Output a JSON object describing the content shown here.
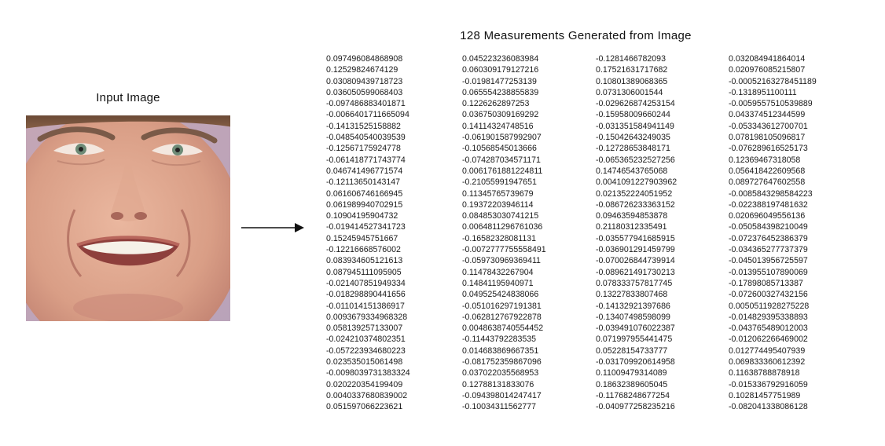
{
  "input_label": "Input Image",
  "title": "128 Measurements Generated from Image",
  "columns": [
    [
      "0.097496084868908",
      "0.12529824674129",
      "0.030809439718723",
      "0.036050599068403",
      "-0.097486883401871",
      "-0.0066401711665094",
      "-0.14131525158882",
      "-0.048540540039539",
      "-0.12567175924778",
      "-0.061418771743774",
      "0.046741496771574",
      "-0.12113650143147",
      "0.061606746166945",
      "0.061989940702915",
      "0.10904195904732",
      "-0.019414527341723",
      "0.15245945751667",
      "-0.12216668576002",
      "0.083934605121613",
      "0.087945111095905",
      "-0.021407851949334",
      "-0.018298890441656",
      "-0.011014151386917",
      "0.0093679334968328",
      "0.058139257133007",
      "-0.024210374802351",
      "-0.057223934680223",
      "0.023535015061498",
      "-0.0098039731383324",
      "0.020220354199409",
      "0.0040337680839002",
      "0.051597066223621"
    ],
    [
      "0.045223236083984",
      "0.060309179127216",
      "-0.01981477253139",
      "0.065554238855839",
      "0.1226262897253",
      "0.036750309169292",
      "0.14114324748516",
      "-0.061901587992907",
      "-0.10568545013666",
      "-0.074287034571171",
      "0.0061761881224811",
      "-0.21055991947651",
      "0.11345765739679",
      "0.19372203946114",
      "0.084853030741215",
      "0.0064811296761036",
      "-0.16582328081131",
      "-0.0072777755558491",
      "-0.059730969369411",
      "0.11478432267904",
      "0.14841195940971",
      "0.049525424838066",
      "-0.051016297191381",
      "-0.062812767922878",
      "0.0048638740554452",
      "-0.11443792283535",
      "0.014683869667351",
      "-0.081752359867096",
      "0.037022035568953",
      "0.12788131833076",
      "-0.094398014247417",
      "-0.10034311562777"
    ],
    [
      "-0.1281466782093",
      "0.17521631717682",
      "0.10801389068365",
      "0.0731306001544",
      "-0.029626874253154",
      "-0.15958009660244",
      "-0.031351584941149",
      "-0.15042643249035",
      "-0.12728653848171",
      "-0.065365232527256",
      "0.14746543765068",
      "0.0041091227903962",
      "0.021352224051952",
      "-0.086726233363152",
      "0.09463594853878",
      "0.21180312335491",
      "-0.035577941685915",
      "-0.036901291459799",
      "-0.070026844739914",
      "-0.089621491730213",
      "0.078333757817745",
      "0.13227833807468",
      "-0.14132921397686",
      "-0.13407498598099",
      "-0.039491076022387",
      "0.071997955441475",
      "0.05228154733777",
      "-0.031709920614958",
      "0.11009479314089",
      "0.18632389605045",
      "-0.11768248677254",
      "-0.040977258235216"
    ],
    [
      "0.032084941864014",
      "0.020976085215807",
      "-0.00052163278451189",
      "-0.1318951100111",
      "-0.0059557510539889",
      "0.043374512344599",
      "-0.053343612700701",
      "0.078198105096817",
      "-0.076289616525173",
      "0.12369467318058",
      "0.056418422609568",
      "0.089727647602558",
      "-0.0085843298584223",
      "-0.022388197481632",
      "0.020696049556136",
      "-0.050584398210049",
      "-0.072376452386379",
      "-0.034365277737379",
      "-0.045013956725597",
      "-0.013955107890069",
      "-0.17898085713387",
      "-0.072600327432156",
      "0.0050511928275228",
      "-0.014829395338893",
      "-0.043765489012003",
      "-0.012062266469002",
      "0.012774495407939",
      "0.069833360612392",
      "0.11638788878918",
      "-0.015336792916059",
      "0.10281457751989",
      "-0.082041338086128"
    ]
  ]
}
